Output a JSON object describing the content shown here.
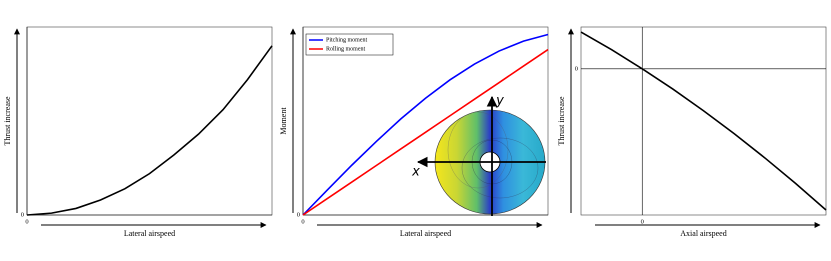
{
  "chart_data": [
    {
      "type": "line",
      "xlabel": "Lateral airspeed",
      "ylabel": "Thrust increase",
      "x": [
        0,
        1,
        2,
        3,
        4,
        5,
        6,
        7,
        8,
        9,
        10
      ],
      "series": [
        {
          "color": "#000000",
          "values": [
            0,
            0.01,
            0.035,
            0.08,
            0.14,
            0.22,
            0.32,
            0.43,
            0.56,
            0.72,
            0.9
          ]
        }
      ],
      "xlim": [
        0,
        10
      ],
      "ylim": [
        0,
        1
      ],
      "xticks": [
        0
      ],
      "yticks": [
        0
      ]
    },
    {
      "type": "line",
      "xlabel": "Lateral airspeed",
      "ylabel": "Moment",
      "legend": "upper left",
      "x": [
        0,
        1,
        2,
        3,
        4,
        5,
        6,
        7,
        8,
        9,
        10
      ],
      "series": [
        {
          "name": "Pitching moment",
          "color": "#0000ff",
          "values": [
            0,
            0.134,
            0.266,
            0.392,
            0.512,
            0.621,
            0.719,
            0.803,
            0.872,
            0.925,
            0.96
          ]
        },
        {
          "name": "Rolling moment",
          "color": "#ff0000",
          "values": [
            0,
            0.088,
            0.176,
            0.264,
            0.352,
            0.44,
            0.528,
            0.616,
            0.704,
            0.792,
            0.88
          ]
        }
      ],
      "xlim": [
        0,
        10
      ],
      "ylim": [
        0,
        1
      ],
      "xticks": [
        0
      ],
      "yticks": [
        0
      ],
      "annotations": [
        "x",
        "y"
      ]
    },
    {
      "type": "line",
      "xlabel": "Axial airspeed",
      "ylabel": "Thrust increase",
      "x": [
        -1,
        -0.5,
        0,
        0.5,
        1,
        1.5,
        2,
        2.5,
        3
      ],
      "series": [
        {
          "color": "#000000",
          "values": [
            0.88,
            0.456,
            0,
            -0.486,
            -1.004,
            -1.552,
            -2.131,
            -2.741,
            -3.381
          ]
        }
      ],
      "xlim": [
        -1,
        3
      ],
      "ylim": [
        -3.5,
        1
      ],
      "xticks": [
        0
      ],
      "yticks": [
        0
      ]
    }
  ]
}
